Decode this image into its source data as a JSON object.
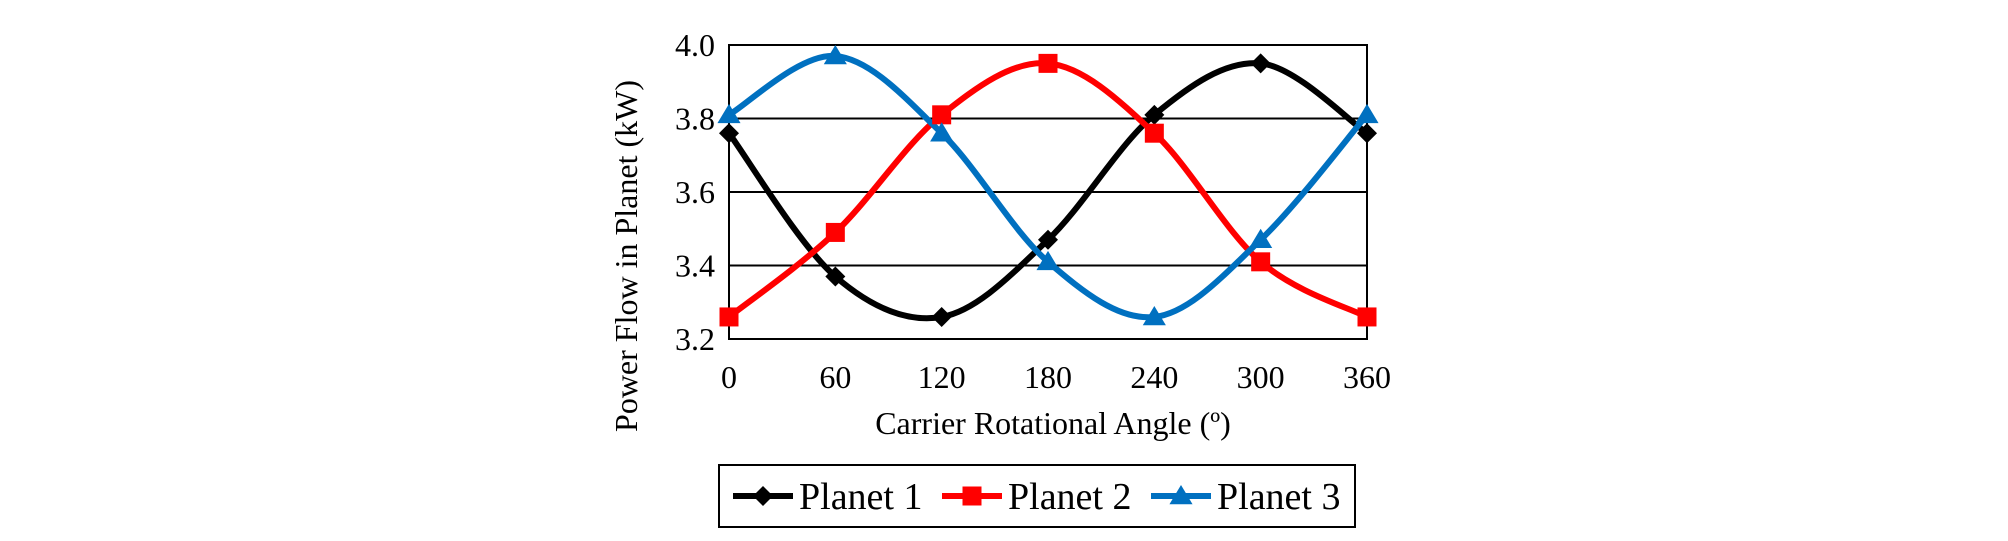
{
  "chart_data": {
    "type": "line",
    "title": "",
    "xlabel": "Carrier Rotational Angle (º)",
    "ylabel": "Power Flow in Planet (kW)",
    "xlim": [
      0,
      360
    ],
    "ylim": [
      3.2,
      4.0
    ],
    "xticks": [
      "0",
      "60",
      "120",
      "180",
      "240",
      "300",
      "360"
    ],
    "yticks": [
      "3.2",
      "3.4",
      "3.6",
      "3.8",
      "4.0"
    ],
    "grid": "horizontal",
    "legend_position": "bottom",
    "series": [
      {
        "name": "Planet 1",
        "color": "#000000",
        "marker": "diamond",
        "x": [
          0,
          60,
          120,
          180,
          240,
          300,
          360
        ],
        "values": [
          3.76,
          3.37,
          3.26,
          3.47,
          3.81,
          3.95,
          3.76
        ]
      },
      {
        "name": "Planet 2",
        "color": "#ff0000",
        "marker": "square",
        "x": [
          0,
          60,
          120,
          180,
          240,
          300,
          360
        ],
        "values": [
          3.26,
          3.49,
          3.81,
          3.95,
          3.76,
          3.41,
          3.26
        ]
      },
      {
        "name": "Planet 3",
        "color": "#0070c0",
        "marker": "triangle",
        "x": [
          0,
          60,
          120,
          180,
          240,
          300,
          360
        ],
        "values": [
          3.81,
          3.97,
          3.76,
          3.41,
          3.26,
          3.47,
          3.81
        ]
      }
    ]
  }
}
